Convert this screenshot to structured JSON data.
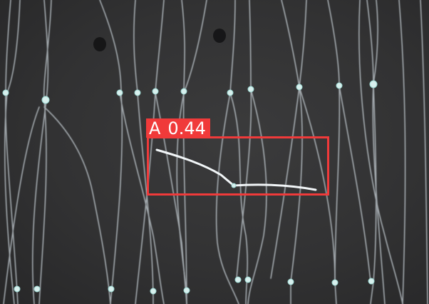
{
  "detection": {
    "class_label": "A",
    "confidence": "0.44",
    "box_color": "#f03a3a"
  },
  "scene": {
    "filament_color": "#c9d2d8",
    "highlight_color": "#f2f6f8",
    "node_color": "#d8f0ee",
    "background_color": "#303031"
  }
}
